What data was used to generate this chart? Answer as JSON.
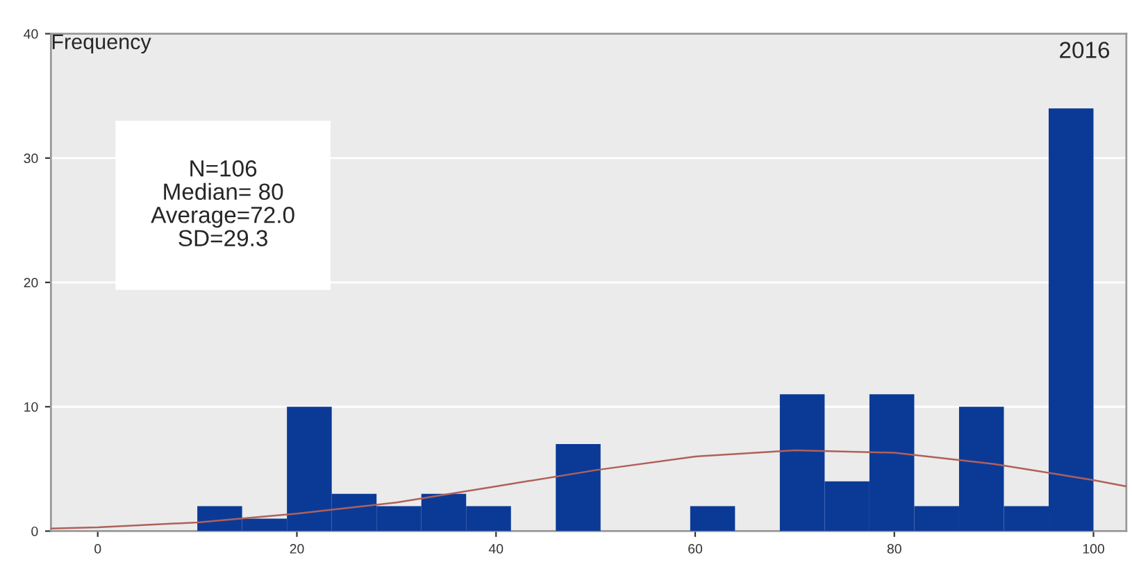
{
  "chart_data": {
    "type": "histogram",
    "title": "2016",
    "ylabel": "Frequency",
    "bins": [
      10,
      14.5,
      19,
      23.5,
      28,
      32.5,
      37,
      41.5,
      46,
      50.5,
      55,
      59.5,
      64,
      68.5,
      73,
      77.5,
      82,
      86.5,
      91,
      95.5,
      100
    ],
    "values": [
      2,
      1,
      10,
      3,
      2,
      3,
      2,
      0,
      7,
      0,
      0,
      2,
      0,
      11,
      4,
      11,
      2,
      10,
      2,
      34
    ],
    "color": "#0b3a96",
    "series": [
      {
        "type": "line",
        "color": "#b0605a",
        "x": [
          -4.7,
          0,
          10,
          20,
          30,
          40,
          50,
          60,
          70,
          80,
          90,
          100,
          103.3
        ],
        "values": [
          0.2,
          0.3,
          0.7,
          1.4,
          2.3,
          3.6,
          4.9,
          6.0,
          6.5,
          6.3,
          5.4,
          4.1,
          3.6
        ]
      }
    ],
    "annotations": [
      "N=106\nMedian= 80\nAverage=72.0\nSD=29.3"
    ],
    "xlim": [
      -4.7,
      103.3
    ],
    "ylim": [
      0,
      40
    ],
    "xticks": [
      0,
      20,
      40,
      60,
      80,
      100
    ],
    "yticks": [
      0,
      10,
      20,
      30,
      40
    ],
    "grid": "y"
  }
}
